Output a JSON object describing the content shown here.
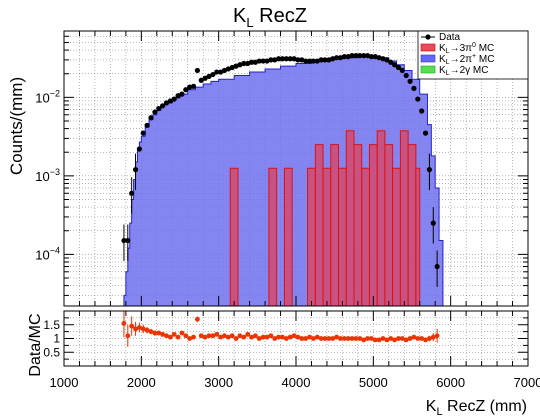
{
  "chart_data": [
    {
      "type": "area",
      "title": "K_L RecZ",
      "title_main": "K",
      "title_sub": "L",
      "title_rest": " RecZ",
      "ylabel": "Counts/(mm)",
      "xlim": [
        1000,
        7000
      ],
      "ylim": [
        2.2e-05,
        0.07
      ],
      "yscale": "log",
      "grid": true,
      "legend_placement": "top-right",
      "legend": [
        {
          "label": "Data",
          "marker": "dot",
          "color": "#000000"
        },
        {
          "label": "K_L→3π0 MC",
          "main": "K",
          "sub": "L",
          "tail": "→3π",
          "sup": "0",
          "after": " MC",
          "color": "#e84a5f"
        },
        {
          "label": "K_L→2π+ MC",
          "main": "K",
          "sub": "L",
          "tail": "→2π",
          "sup": "+",
          "after": " MC",
          "color": "#6666ff"
        },
        {
          "label": "K_L→2γ MC",
          "main": "K",
          "sub": "L",
          "tail": "→2γ",
          "sup": "",
          "after": " MC",
          "color": "#55dd55"
        }
      ],
      "y_ticks": [
        {
          "value": 0.0001,
          "base": "10",
          "exp": "−4"
        },
        {
          "value": 0.001,
          "base": "10",
          "exp": "−3"
        },
        {
          "value": 0.01,
          "base": "10",
          "exp": "−2"
        }
      ],
      "series": [
        {
          "name": "K_L→2π+ MC",
          "kind": "filled-histogram",
          "color": "#7070f0",
          "x": [
            1700,
            1775,
            1800,
            1825,
            1850,
            1875,
            1900,
            1925,
            1950,
            1975,
            2000,
            2050,
            2100,
            2150,
            2200,
            2250,
            2300,
            2400,
            2500,
            2600,
            2700,
            2800,
            2900,
            3000,
            3200,
            3400,
            3600,
            3800,
            4000,
            4200,
            4400,
            4600,
            4800,
            5000,
            5200,
            5300,
            5400,
            5500,
            5600,
            5700,
            5750,
            5800,
            5850,
            5900
          ],
          "y": [
            2.2e-05,
            3e-05,
            6e-05,
            0.00012,
            0.00025,
            0.0005,
            0.0009,
            0.0015,
            0.0021,
            0.0027,
            0.0032,
            0.0042,
            0.0052,
            0.006,
            0.0068,
            0.0078,
            0.0085,
            0.0098,
            0.011,
            0.0125,
            0.0135,
            0.0148,
            0.016,
            0.017,
            0.019,
            0.021,
            0.023,
            0.025,
            0.027,
            0.029,
            0.031,
            0.032,
            0.033,
            0.032,
            0.029,
            0.026,
            0.022,
            0.017,
            0.011,
            0.0045,
            0.0018,
            0.0007,
            0.00015,
            2.2e-05
          ]
        },
        {
          "name": "K_L→3π0 MC",
          "kind": "filled-histogram",
          "color": "#e84a5f",
          "bins": [
            {
              "x0": 3150,
              "x1": 3250,
              "y": 0.00125
            },
            {
              "x0": 3650,
              "x1": 3750,
              "y": 0.00125
            },
            {
              "x0": 3850,
              "x1": 3950,
              "y": 0.00125
            },
            {
              "x0": 4150,
              "x1": 4250,
              "y": 0.00125
            },
            {
              "x0": 4250,
              "x1": 4350,
              "y": 0.0025
            },
            {
              "x0": 4350,
              "x1": 4450,
              "y": 0.00125
            },
            {
              "x0": 4450,
              "x1": 4550,
              "y": 0.0025
            },
            {
              "x0": 4550,
              "x1": 4650,
              "y": 0.00125
            },
            {
              "x0": 4650,
              "x1": 4750,
              "y": 0.00375
            },
            {
              "x0": 4750,
              "x1": 4850,
              "y": 0.0025
            },
            {
              "x0": 4850,
              "x1": 4950,
              "y": 0.00125
            },
            {
              "x0": 4950,
              "x1": 5050,
              "y": 0.0025
            },
            {
              "x0": 5050,
              "x1": 5150,
              "y": 0.00375
            },
            {
              "x0": 5150,
              "x1": 5250,
              "y": 0.0025
            },
            {
              "x0": 5250,
              "x1": 5350,
              "y": 0.00125
            },
            {
              "x0": 5350,
              "x1": 5450,
              "y": 0.00375
            },
            {
              "x0": 5450,
              "x1": 5550,
              "y": 0.0025
            },
            {
              "x0": 5550,
              "x1": 5600,
              "y": 0.00125
            }
          ]
        },
        {
          "name": "Data",
          "kind": "points",
          "color": "#000000",
          "x": [
            1775,
            1825,
            1875,
            1925,
            1975,
            2025,
            2075,
            2125,
            2175,
            2225,
            2275,
            2325,
            2375,
            2425,
            2475,
            2525,
            2575,
            2625,
            2675,
            2725,
            2775,
            2825,
            2875,
            2925,
            2975,
            3025,
            3075,
            3125,
            3175,
            3225,
            3275,
            3325,
            3375,
            3425,
            3475,
            3525,
            3575,
            3625,
            3675,
            3725,
            3775,
            3825,
            3875,
            3925,
            3975,
            4025,
            4075,
            4125,
            4175,
            4225,
            4275,
            4325,
            4375,
            4425,
            4475,
            4525,
            4575,
            4625,
            4675,
            4725,
            4775,
            4825,
            4875,
            4925,
            4975,
            5025,
            5075,
            5125,
            5175,
            5225,
            5275,
            5325,
            5375,
            5425,
            5475,
            5525,
            5575,
            5625,
            5675,
            5725,
            5775,
            5825
          ],
          "y": [
            0.00015,
            0.00015,
            0.0006,
            0.0012,
            0.0022,
            0.0035,
            0.0044,
            0.0055,
            0.0065,
            0.0072,
            0.0078,
            0.0085,
            0.009,
            0.0095,
            0.0105,
            0.011,
            0.0125,
            0.0135,
            0.0138,
            0.022,
            0.0165,
            0.0175,
            0.0185,
            0.0195,
            0.021,
            0.021,
            0.022,
            0.023,
            0.024,
            0.025,
            0.026,
            0.027,
            0.027,
            0.028,
            0.028,
            0.029,
            0.029,
            0.029,
            0.03,
            0.03,
            0.031,
            0.031,
            0.031,
            0.031,
            0.031,
            0.03,
            0.03,
            0.029,
            0.029,
            0.029,
            0.029,
            0.03,
            0.03,
            0.03,
            0.031,
            0.032,
            0.032,
            0.033,
            0.033,
            0.034,
            0.034,
            0.034,
            0.034,
            0.034,
            0.033,
            0.033,
            0.032,
            0.031,
            0.03,
            0.028,
            0.026,
            0.024,
            0.022,
            0.019,
            0.016,
            0.013,
            0.0095,
            0.0067,
            0.0035,
            0.0012,
            0.00025,
            7e-05
          ]
        }
      ]
    },
    {
      "type": "scatter",
      "ylabel": "Data/MC",
      "xlabel": "K_L RecZ (mm)",
      "xlabel_main": "K",
      "xlabel_sub": "L",
      "xlabel_rest": " RecZ (mm)",
      "xlim": [
        1000,
        7000
      ],
      "ylim": [
        0,
        2.0
      ],
      "x_ticks": [
        1000,
        2000,
        3000,
        4000,
        5000,
        6000,
        7000
      ],
      "y_ticks": [
        "0.5",
        "1",
        "1.5"
      ],
      "y_tick_values": [
        0.5,
        1,
        1.5
      ],
      "grid": true,
      "series": [
        {
          "name": "Data/MC",
          "color": "#ee3300",
          "x": [
            1775,
            1825,
            1875,
            1925,
            1975,
            2025,
            2075,
            2125,
            2175,
            2225,
            2275,
            2325,
            2375,
            2425,
            2475,
            2525,
            2575,
            2625,
            2675,
            2725,
            2775,
            2825,
            2875,
            2925,
            2975,
            3025,
            3075,
            3125,
            3175,
            3225,
            3275,
            3325,
            3375,
            3425,
            3475,
            3525,
            3575,
            3625,
            3675,
            3725,
            3775,
            3825,
            3875,
            3925,
            3975,
            4025,
            4075,
            4125,
            4175,
            4225,
            4275,
            4325,
            4375,
            4425,
            4475,
            4525,
            4575,
            4625,
            4675,
            4725,
            4775,
            4825,
            4875,
            4925,
            4975,
            5025,
            5075,
            5125,
            5175,
            5225,
            5275,
            5325,
            5375,
            5425,
            5475,
            5525,
            5575,
            5625,
            5675,
            5725,
            5775,
            5825
          ],
          "y": [
            1.55,
            1.1,
            1.45,
            1.35,
            1.4,
            1.35,
            1.3,
            1.25,
            1.2,
            1.2,
            1.15,
            1.1,
            1.05,
            1.15,
            1.05,
            1.2,
            1.1,
            1.0,
            1.05,
            1.7,
            1.1,
            1.05,
            1.1,
            1.1,
            1.15,
            1.05,
            1.1,
            1.05,
            1.1,
            1.0,
            1.1,
            1.05,
            1.15,
            1.05,
            1.1,
            1.0,
            1.05,
            1.05,
            1.1,
            1.0,
            1.05,
            1.05,
            1.0,
            1.05,
            1.1,
            1.05,
            1.0,
            1.0,
            1.05,
            1.0,
            1.05,
            1.0,
            1.0,
            1.0,
            1.0,
            1.05,
            1.0,
            1.0,
            1.0,
            1.0,
            1.0,
            1.0,
            0.95,
            1.0,
            1.0,
            0.95,
            0.95,
            1.0,
            0.95,
            1.0,
            0.95,
            1.0,
            1.0,
            0.95,
            1.0,
            1.05,
            1.0,
            1.0,
            0.95,
            1.0,
            1.05,
            1.1
          ],
          "err": [
            0.5,
            0.4,
            0.35,
            0.25,
            0.18,
            0.15,
            0.12,
            0.1,
            0.1,
            0.09,
            0.08,
            0.08,
            0.07,
            0.07,
            0.07,
            0.06,
            0.06,
            0.06,
            0.06,
            0.1,
            0.06,
            0.06,
            0.05,
            0.05,
            0.05,
            0.05,
            0.05,
            0.05,
            0.05,
            0.05,
            0.05,
            0.05,
            0.05,
            0.05,
            0.05,
            0.05,
            0.05,
            0.05,
            0.05,
            0.05,
            0.05,
            0.05,
            0.05,
            0.05,
            0.05,
            0.05,
            0.05,
            0.05,
            0.05,
            0.05,
            0.05,
            0.05,
            0.05,
            0.05,
            0.05,
            0.05,
            0.05,
            0.05,
            0.05,
            0.05,
            0.05,
            0.05,
            0.05,
            0.05,
            0.05,
            0.05,
            0.05,
            0.05,
            0.05,
            0.05,
            0.05,
            0.05,
            0.05,
            0.05,
            0.05,
            0.05,
            0.06,
            0.07,
            0.08,
            0.1,
            0.15,
            0.25
          ]
        }
      ]
    }
  ]
}
